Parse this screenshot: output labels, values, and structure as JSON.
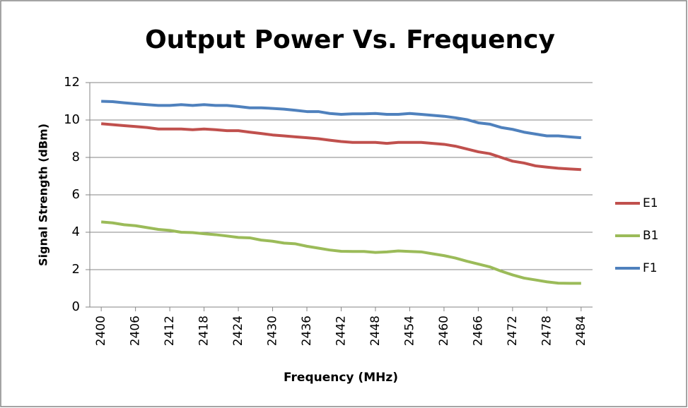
{
  "chart_data": {
    "type": "line",
    "title": "Output Power Vs. Frequency",
    "x_label": "Frequency (MHz)",
    "y_label": "Signal Strength (dBm)",
    "x": [
      2400,
      2402,
      2404,
      2406,
      2408,
      2410,
      2412,
      2414,
      2416,
      2418,
      2420,
      2422,
      2424,
      2426,
      2428,
      2430,
      2432,
      2434,
      2436,
      2438,
      2440,
      2442,
      2444,
      2446,
      2448,
      2450,
      2452,
      2454,
      2456,
      2458,
      2460,
      2462,
      2464,
      2466,
      2468,
      2470,
      2472,
      2474,
      2476,
      2478,
      2480,
      2482,
      2484
    ],
    "series": [
      {
        "name": "E1",
        "color": "#c0504d",
        "values": [
          9.8,
          9.75,
          9.7,
          9.65,
          9.6,
          9.52,
          9.52,
          9.52,
          9.48,
          9.52,
          9.48,
          9.43,
          9.43,
          9.35,
          9.28,
          9.2,
          9.15,
          9.1,
          9.05,
          9.0,
          8.92,
          8.85,
          8.8,
          8.8,
          8.8,
          8.75,
          8.8,
          8.8,
          8.8,
          8.75,
          8.7,
          8.6,
          8.45,
          8.3,
          8.2,
          8.0,
          7.8,
          7.7,
          7.55,
          7.48,
          7.42,
          7.38,
          7.35
        ]
      },
      {
        "name": "B1",
        "color": "#9bbb59",
        "values": [
          4.55,
          4.5,
          4.4,
          4.35,
          4.25,
          4.15,
          4.1,
          4.0,
          3.98,
          3.92,
          3.87,
          3.8,
          3.72,
          3.7,
          3.58,
          3.52,
          3.42,
          3.38,
          3.25,
          3.15,
          3.05,
          2.98,
          2.97,
          2.97,
          2.92,
          2.95,
          3.0,
          2.97,
          2.95,
          2.85,
          2.75,
          2.62,
          2.45,
          2.3,
          2.15,
          1.92,
          1.72,
          1.55,
          1.45,
          1.35,
          1.28,
          1.27,
          1.27
        ]
      },
      {
        "name": "F1",
        "color": "#4f81bd",
        "values": [
          11.0,
          10.98,
          10.92,
          10.87,
          10.82,
          10.78,
          10.78,
          10.82,
          10.78,
          10.82,
          10.78,
          10.78,
          10.72,
          10.65,
          10.65,
          10.62,
          10.58,
          10.52,
          10.45,
          10.45,
          10.35,
          10.3,
          10.33,
          10.33,
          10.35,
          10.3,
          10.3,
          10.35,
          10.3,
          10.25,
          10.2,
          10.12,
          10.02,
          9.85,
          9.78,
          9.6,
          9.5,
          9.35,
          9.25,
          9.15,
          9.15,
          9.1,
          9.05
        ]
      }
    ],
    "xlim": [
      2398,
      2486
    ],
    "xticks": [
      2400,
      2406,
      2412,
      2418,
      2424,
      2430,
      2436,
      2442,
      2448,
      2454,
      2460,
      2466,
      2472,
      2478,
      2484
    ],
    "ylim": [
      0,
      12
    ],
    "yticks": [
      0,
      2,
      4,
      6,
      8,
      10,
      12
    ],
    "grid": true,
    "legend": "right"
  }
}
